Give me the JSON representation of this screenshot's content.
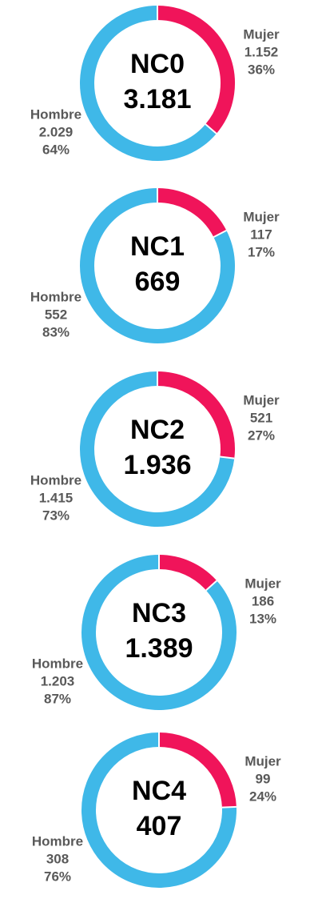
{
  "chart_data": [
    {
      "type": "pie",
      "donut": true,
      "title": "NC0",
      "total": {
        "value": 3181,
        "label": "3.181"
      },
      "categories": [
        "Mujer",
        "Hombre"
      ],
      "values": [
        1152,
        2029
      ],
      "value_labels": [
        "1.152",
        "2.029"
      ],
      "percent_labels": [
        "36%",
        "64%"
      ],
      "colors": [
        "#f0145a",
        "#3fb8e8"
      ]
    },
    {
      "type": "pie",
      "donut": true,
      "title": "NC1",
      "total": {
        "value": 669,
        "label": "669"
      },
      "categories": [
        "Mujer",
        "Hombre"
      ],
      "values": [
        117,
        552
      ],
      "value_labels": [
        "117",
        "552"
      ],
      "percent_labels": [
        "17%",
        "83%"
      ],
      "colors": [
        "#f0145a",
        "#3fb8e8"
      ]
    },
    {
      "type": "pie",
      "donut": true,
      "title": "NC2",
      "total": {
        "value": 1936,
        "label": "1.936"
      },
      "categories": [
        "Mujer",
        "Hombre"
      ],
      "values": [
        521,
        1415
      ],
      "value_labels": [
        "521",
        "1.415"
      ],
      "percent_labels": [
        "27%",
        "73%"
      ],
      "colors": [
        "#f0145a",
        "#3fb8e8"
      ]
    },
    {
      "type": "pie",
      "donut": true,
      "title": "NC3",
      "total": {
        "value": 1389,
        "label": "1.389"
      },
      "categories": [
        "Mujer",
        "Hombre"
      ],
      "values": [
        186,
        1203
      ],
      "value_labels": [
        "186",
        "1.203"
      ],
      "percent_labels": [
        "13%",
        "87%"
      ],
      "colors": [
        "#f0145a",
        "#3fb8e8"
      ]
    },
    {
      "type": "pie",
      "donut": true,
      "title": "NC4",
      "total": {
        "value": 407,
        "label": "407"
      },
      "categories": [
        "Mujer",
        "Hombre"
      ],
      "values": [
        99,
        308
      ],
      "value_labels": [
        "99",
        "308"
      ],
      "percent_labels": [
        "24%",
        "76%"
      ],
      "colors": [
        "#f0145a",
        "#3fb8e8"
      ]
    }
  ]
}
